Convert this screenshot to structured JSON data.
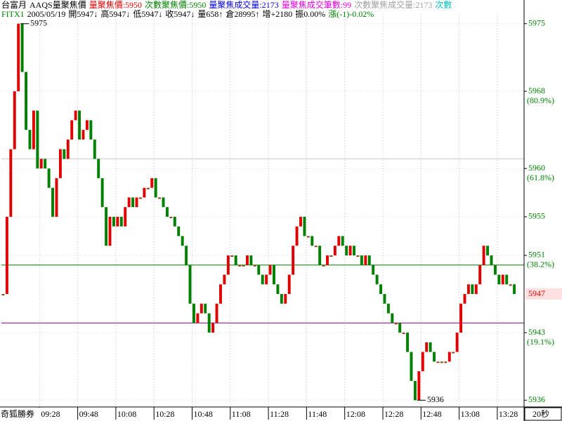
{
  "chart_data": {
    "type": "candle",
    "header_lines": [
      [
        {
          "text": "台富月",
          "color": "#000000"
        },
        {
          "text": "AAQS量聚焦價",
          "color": "#000000"
        },
        {
          "text": "量聚焦價:5950",
          "color": "#e00000"
        },
        {
          "text": "次數聚焦價:5950",
          "color": "#008000"
        },
        {
          "text": "量聚焦成交量:2173",
          "color": "#0000e0"
        },
        {
          "text": "量聚焦成交筆數:99",
          "color": "#e000e0"
        },
        {
          "text": "次數聚焦成交量:2173",
          "color": "#a0a0a0"
        },
        {
          "text": "次數",
          "color": "#00c0c0"
        }
      ],
      [
        {
          "text": "FITX1",
          "color": "#008000"
        },
        {
          "text": "2005/05/19",
          "color": "#000000"
        },
        {
          "text": "開5947↓",
          "color": "#000000"
        },
        {
          "text": "高5947↓",
          "color": "#000000"
        },
        {
          "text": "低5947↓",
          "color": "#000000"
        },
        {
          "text": "收5947↓",
          "color": "#000000"
        },
        {
          "text": "量658↑",
          "color": "#000000"
        },
        {
          "text": "倉28995↑",
          "color": "#000000"
        },
        {
          "text": "增+2180",
          "color": "#000000"
        },
        {
          "text": "振0.00%",
          "color": "#000000"
        },
        {
          "text": "漲(-1)-0.02%",
          "color": "#008000"
        }
      ]
    ],
    "footer_left": "奇狐勝券",
    "period": "20秒",
    "categories": [
      null,
      null,
      null,
      null,
      null,
      null,
      null,
      null,
      null,
      null,
      "09:28",
      null,
      null,
      null,
      null,
      null,
      null,
      null,
      null,
      null,
      "09:48",
      null,
      null,
      null,
      null,
      null,
      null,
      null,
      null,
      null,
      "10:08",
      null,
      null,
      null,
      null,
      null,
      null,
      null,
      null,
      null,
      "10:28",
      null,
      null,
      null,
      null,
      null,
      null,
      null,
      null,
      null,
      "10:48",
      null,
      null,
      null,
      null,
      null,
      null,
      null,
      null,
      null,
      "11:08",
      null,
      null,
      null,
      null,
      null,
      null,
      null,
      null,
      null,
      "11:28",
      null,
      null,
      null,
      null,
      null,
      null,
      null,
      null,
      null,
      "11:48",
      null,
      null,
      null,
      null,
      null,
      null,
      null,
      null,
      null,
      "12:08",
      null,
      null,
      null,
      null,
      null,
      null,
      null,
      null,
      null,
      "12:28",
      null,
      null,
      null,
      null,
      null,
      null,
      null,
      null,
      null,
      "12:48",
      null,
      null,
      null,
      null,
      null,
      null,
      null,
      null,
      null,
      "13:08",
      null,
      null,
      null,
      null,
      null,
      null,
      null,
      null,
      null,
      "13:28",
      null,
      null,
      null,
      null
    ],
    "values": [
      5947,
      5955,
      5962,
      5968,
      5975,
      5970,
      5964,
      5962,
      5966,
      5960,
      5961,
      5960,
      5958,
      5955,
      5959,
      5962,
      5961,
      5963,
      5965,
      5966,
      5963,
      5964,
      5965,
      5963,
      5961,
      5959,
      5956,
      5952,
      5955,
      5954,
      5955,
      5954,
      5956,
      5957,
      5956,
      5957,
      5957,
      5958,
      5958,
      5959,
      5957,
      5957,
      5956,
      5955,
      5955,
      5954,
      5953,
      5952,
      5950,
      5946,
      5944,
      5945,
      5946,
      5945,
      5943,
      5944,
      5946,
      5948,
      5949,
      5951,
      5951,
      5950,
      5950,
      5950,
      5951,
      5950,
      5950,
      5949,
      5948,
      5949,
      5950,
      5948,
      5947,
      5946,
      5947,
      5949,
      5952,
      5954,
      5955,
      5953,
      5953,
      5952,
      5952,
      5950,
      5950,
      5951,
      5951,
      5952,
      5953,
      5952,
      5951,
      5952,
      5951,
      5951,
      5950,
      5951,
      5950,
      5949,
      5948,
      5947,
      5946,
      5945,
      5944,
      5944,
      5943,
      5943,
      5941,
      5938,
      5936,
      5939,
      5941,
      5942,
      5941,
      5940,
      5940,
      5940,
      5940,
      5941,
      5941,
      5943,
      5946,
      5947,
      5948,
      5947,
      5948,
      5950,
      5952,
      5951,
      5950,
      5949,
      5948,
      5949,
      5948,
      5948,
      5947
    ],
    "up_color": "#e00000",
    "down_color": "#008000",
    "flat_color": "#8b4513",
    "ylim": [
      5935.3,
      5976
    ],
    "yticks": [
      5975,
      5968,
      5960,
      5955,
      5951,
      5943,
      5936
    ],
    "fib_levels": [
      {
        "label": "(80.9%)",
        "price": 5968
      },
      {
        "label": "(61.8%)",
        "price": 5960
      },
      {
        "label": "(38.2%)",
        "price": 5951
      },
      {
        "label": "(19.1%)",
        "price": 5943
      }
    ],
    "fib_color": "#008000",
    "lines": [
      {
        "value": 5961,
        "color": "#c8c8c8"
      },
      {
        "value": 5950,
        "color": "#008000"
      },
      {
        "value": 5944,
        "color": "#800080"
      }
    ],
    "current_color": "#e00000",
    "grid": true
  }
}
